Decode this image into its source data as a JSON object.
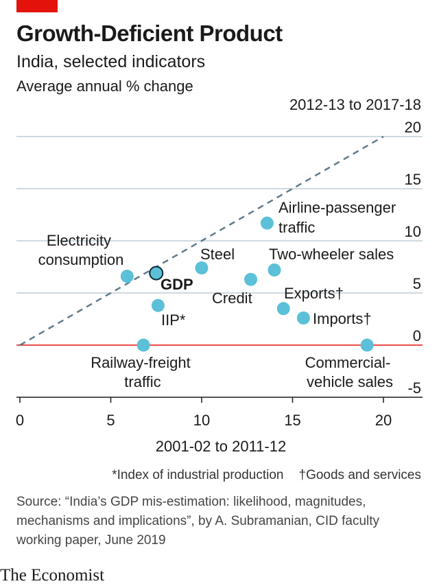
{
  "header": {
    "title": "Growth-Deficient Product",
    "subtitle": "India, selected indicators",
    "unit": "Average annual % change"
  },
  "chart_data": {
    "type": "scatter",
    "xlabel": "2001-02 to 2011-12",
    "ylabel": "2012-13 to 2017-18",
    "xlim": [
      -1,
      22
    ],
    "ylim": [
      -5,
      20
    ],
    "x_ticks": [
      "0",
      "5",
      "10",
      "15",
      "20"
    ],
    "y_ticks": [
      "20",
      "15",
      "10",
      "5",
      "0",
      "-5"
    ],
    "reference_line": {
      "type": "y = x",
      "style": "dashed"
    },
    "zero_line_color": "#e3120b",
    "point_color": "#5bc0d8",
    "highlight_color": "#2a7f95",
    "grid": "horizontal",
    "points": [
      {
        "label": "Electricity consumption",
        "x": 5.9,
        "y": 6.6
      },
      {
        "label": "GDP",
        "x": 7.5,
        "y": 6.9,
        "highlight": true
      },
      {
        "label": "IIP*",
        "x": 7.6,
        "y": 3.8
      },
      {
        "label": "Steel",
        "x": 10.0,
        "y": 7.4
      },
      {
        "label": "Credit",
        "x": 12.7,
        "y": 6.3
      },
      {
        "label": "Two-wheeler sales",
        "x": 14.0,
        "y": 7.2
      },
      {
        "label": "Airline-passenger traffic",
        "x": 13.6,
        "y": 11.7
      },
      {
        "label": "Exports†",
        "x": 14.5,
        "y": 3.5
      },
      {
        "label": "Imports†",
        "x": 15.6,
        "y": 2.6
      },
      {
        "label": "Railway-freight traffic",
        "x": 6.8,
        "y": 0.0
      },
      {
        "label": "Commercial-vehicle sales",
        "x": 19.1,
        "y": 0.0
      }
    ]
  },
  "point_labels": {
    "electricity": [
      "Electricity",
      "consumption"
    ],
    "gdp": "GDP",
    "iip": "IIP*",
    "steel": "Steel",
    "credit": "Credit",
    "two_wheeler": "Two-wheeler sales",
    "airline": [
      "Airline-passenger",
      "traffic"
    ],
    "exports": "Exports†",
    "imports": "Imports†",
    "railway": [
      "Railway-freight",
      "traffic"
    ],
    "commercial": [
      "Commercial-",
      "vehicle sales"
    ]
  },
  "footnotes": {
    "iip": "*Index of industrial production",
    "goods": "†Goods and services"
  },
  "source": "Source: “India’s GDP mis-estimation: likelihood, magnitudes, mechanisms and implications”, by A. Subramanian, CID faculty working paper, June 2019",
  "brand": "The Economist"
}
